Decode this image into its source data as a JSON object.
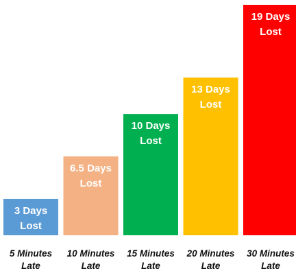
{
  "chart_data": {
    "type": "bar",
    "categories": [
      [
        "5 Minutes",
        "Late"
      ],
      [
        "10 Minutes",
        "Late"
      ],
      [
        "15 Minutes",
        "Late"
      ],
      [
        "20 Minutes",
        "Late"
      ],
      [
        "30 Minutes",
        "Late"
      ]
    ],
    "values": [
      3,
      6.5,
      10,
      13,
      19
    ],
    "data_labels": [
      [
        "3 Days",
        "Lost"
      ],
      [
        "6.5 Days",
        "Lost"
      ],
      [
        "10 Days",
        "Lost"
      ],
      [
        "13 Days",
        "Lost"
      ],
      [
        "19 Days",
        "Lost"
      ]
    ],
    "colors": [
      "#5B9BD5",
      "#F4B183",
      "#00B050",
      "#FFC000",
      "#FF0000"
    ],
    "title": "",
    "xlabel": "",
    "ylabel": "",
    "ylim": [
      0,
      19
    ],
    "grid": false,
    "legend": "none"
  }
}
